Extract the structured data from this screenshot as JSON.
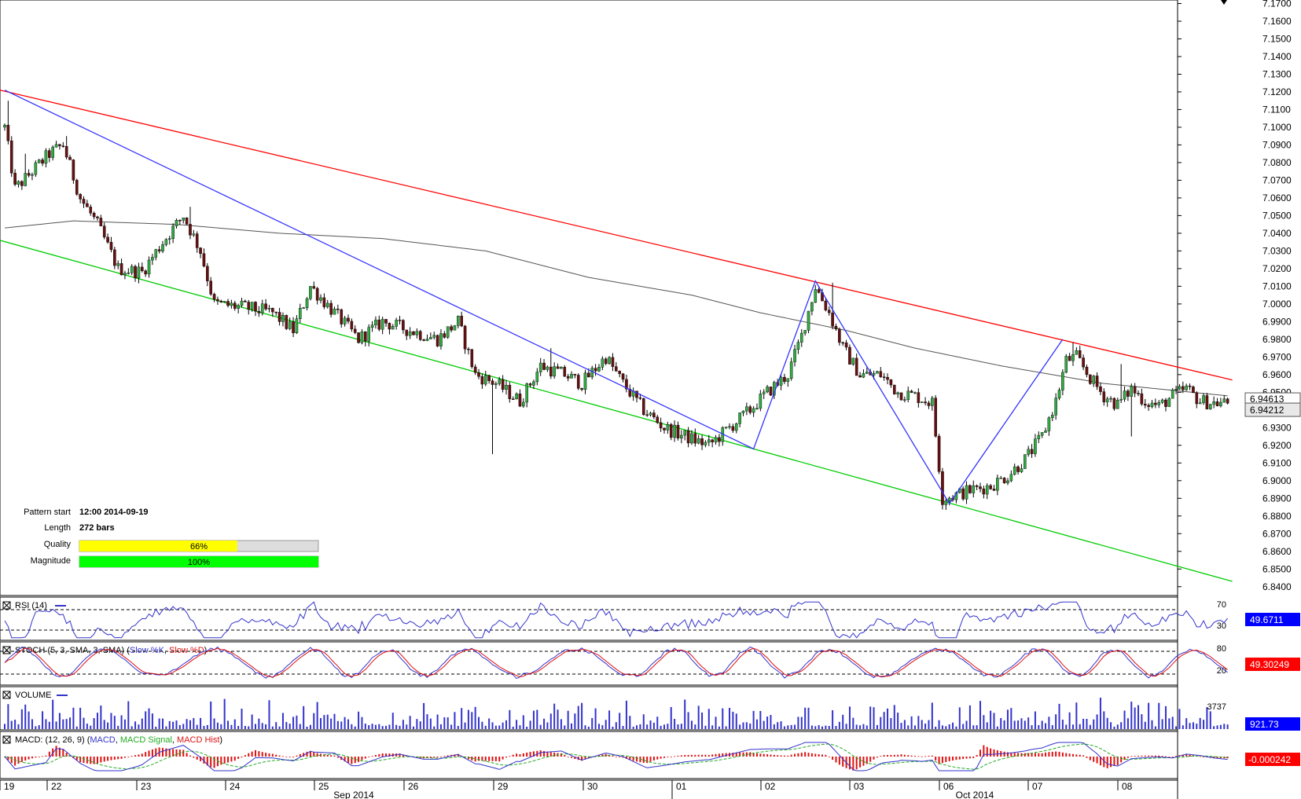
{
  "chart_data": {
    "type": "candlestick",
    "price_axis": {
      "ylim": [
        6.835,
        7.172
      ],
      "ticks": [
        "7.1700",
        "7.1600",
        "7.1500",
        "7.1400",
        "7.1300",
        "7.1200",
        "7.1100",
        "7.1000",
        "7.0900",
        "7.0800",
        "7.0700",
        "7.0600",
        "7.0500",
        "7.0400",
        "7.0300",
        "7.0200",
        "7.0100",
        "7.0000",
        "6.9900",
        "6.9800",
        "6.9700",
        "6.9600",
        "6.9500",
        "6.9300",
        "6.9200",
        "6.9100",
        "6.9000",
        "6.8900",
        "6.8800",
        "6.8700",
        "6.8600",
        "6.8500",
        "6.8400"
      ],
      "tick_values": [
        7.17,
        7.16,
        7.15,
        7.14,
        7.13,
        7.12,
        7.11,
        7.1,
        7.09,
        7.08,
        7.07,
        7.06,
        7.05,
        7.04,
        7.03,
        7.02,
        7.01,
        7.0,
        6.99,
        6.98,
        6.97,
        6.96,
        6.95,
        6.93,
        6.92,
        6.91,
        6.9,
        6.89,
        6.88,
        6.87,
        6.86,
        6.85,
        6.84
      ],
      "last_price": "6.94212",
      "ma_label": "6.94613",
      "last_value": 6.94212,
      "ma_value": 6.94613
    },
    "date_axis": {
      "day_labels": [
        "19",
        "22",
        "23",
        "24",
        "25",
        "26",
        "29",
        "30",
        "01",
        "02",
        "03",
        "06",
        "07",
        "08"
      ],
      "month_labels": [
        "Sep 2014",
        "Oct 2014"
      ]
    },
    "price_anchors": [
      [
        0,
        7.1
      ],
      [
        3,
        7.065
      ],
      [
        8,
        7.075
      ],
      [
        13,
        7.085
      ],
      [
        17,
        7.09
      ],
      [
        22,
        7.06
      ],
      [
        27,
        7.045
      ],
      [
        33,
        7.02
      ],
      [
        40,
        7.018
      ],
      [
        46,
        7.035
      ],
      [
        52,
        7.05
      ],
      [
        57,
        7.03
      ],
      [
        61,
        7.0
      ],
      [
        70,
        6.998
      ],
      [
        78,
        6.995
      ],
      [
        84,
        6.985
      ],
      [
        89,
        7.01
      ],
      [
        96,
        6.995
      ],
      [
        103,
        6.98
      ],
      [
        110,
        6.99
      ],
      [
        118,
        6.985
      ],
      [
        126,
        6.98
      ],
      [
        132,
        6.99
      ],
      [
        137,
        6.96
      ],
      [
        143,
        6.955
      ],
      [
        150,
        6.945
      ],
      [
        156,
        6.965
      ],
      [
        163,
        6.96
      ],
      [
        168,
        6.955
      ],
      [
        175,
        6.97
      ],
      [
        180,
        6.955
      ],
      [
        186,
        6.94
      ],
      [
        192,
        6.93
      ],
      [
        198,
        6.925
      ],
      [
        205,
        6.92
      ],
      [
        211,
        6.93
      ],
      [
        217,
        6.94
      ],
      [
        222,
        6.95
      ],
      [
        228,
        6.96
      ],
      [
        232,
        6.982
      ],
      [
        236,
        7.01
      ],
      [
        240,
        6.995
      ],
      [
        244,
        6.975
      ],
      [
        249,
        6.96
      ],
      [
        255,
        6.96
      ],
      [
        260,
        6.95
      ],
      [
        265,
        6.948
      ],
      [
        270,
        6.944
      ],
      [
        273,
        6.89
      ],
      [
        277,
        6.892
      ],
      [
        282,
        6.895
      ],
      [
        287,
        6.897
      ],
      [
        292,
        6.903
      ],
      [
        297,
        6.912
      ],
      [
        302,
        6.925
      ],
      [
        306,
        6.945
      ],
      [
        309,
        6.968
      ],
      [
        312,
        6.97
      ],
      [
        316,
        6.958
      ],
      [
        320,
        6.948
      ],
      [
        324,
        6.943
      ],
      [
        328,
        6.952
      ],
      [
        332,
        6.945
      ],
      [
        336,
        6.942
      ],
      [
        340,
        6.948
      ],
      [
        344,
        6.952
      ],
      [
        348,
        6.945
      ],
      [
        352,
        6.944
      ],
      [
        356,
        6.944
      ]
    ],
    "high_low_extremes": [
      [
        1,
        7.115
      ],
      [
        6,
        7.085
      ],
      [
        18,
        7.095
      ],
      [
        54,
        7.055
      ],
      [
        142,
        6.915
      ],
      [
        159,
        6.975
      ],
      [
        229,
        6.967
      ],
      [
        241,
        7.012
      ],
      [
        275,
        6.886
      ],
      [
        311,
        6.978
      ],
      [
        325,
        6.966
      ],
      [
        328,
        6.925
      ]
    ],
    "candle_count": 357,
    "moving_average": [
      [
        0,
        7.043
      ],
      [
        20,
        7.047
      ],
      [
        50,
        7.045
      ],
      [
        80,
        7.04
      ],
      [
        110,
        7.037
      ],
      [
        140,
        7.03
      ],
      [
        170,
        7.015
      ],
      [
        200,
        7.005
      ],
      [
        220,
        6.995
      ],
      [
        245,
        6.985
      ],
      [
        265,
        6.975
      ],
      [
        290,
        6.965
      ],
      [
        320,
        6.955
      ],
      [
        356,
        6.948
      ]
    ],
    "trend_lines": [
      {
        "color": "#ff0000",
        "points": [
          [
            0,
            7.121
          ],
          [
            356,
            6.957
          ]
        ]
      },
      {
        "color": "#00cc00",
        "points": [
          [
            0,
            7.036
          ],
          [
            356,
            6.843
          ]
        ]
      }
    ],
    "zigzag": {
      "color": "#3333ff",
      "points": [
        [
          0,
          7.121
        ],
        [
          218,
          6.918
        ],
        [
          236,
          7.013
        ],
        [
          275,
          6.887
        ],
        [
          308,
          6.98
        ]
      ]
    },
    "pattern_info": {
      "start_label": "Pattern start",
      "start_value": "12:00 2014-09-19",
      "length_label": "Length",
      "length_value": "272 bars",
      "quality_label": "Quality",
      "quality_text": "66%",
      "quality": 0.66,
      "magnitude_label": "Magnitude",
      "magnitude_text": "100%",
      "magnitude": 1.0
    },
    "indicators": {
      "rsi": {
        "title": "RSI (14)",
        "levels": [
          "70",
          "30"
        ],
        "level_values": [
          70,
          30
        ],
        "value_text": "49.6711"
      },
      "stoch": {
        "title_prefix": "STOCH (5, 3, SMA, 3, SMA) (",
        "k_name": "Slow %K",
        "sep": ", ",
        "d_name": "Slow %D",
        "title_suffix": ")",
        "levels": [
          "80",
          "20"
        ],
        "level_values": [
          80,
          20
        ],
        "value_text": "49.30249"
      },
      "volume": {
        "title": "VOLUME",
        "scale_label": "3737",
        "value_text": "921.73"
      },
      "macd": {
        "title_prefix": "MACD: (12, 26, 9) (",
        "macd_name": "MACD",
        "sep": ", ",
        "signal_name": "MACD Signal",
        "hist_name": "MACD Hist",
        "title_suffix": ")",
        "value_text": "-0.000242"
      }
    },
    "colors": {
      "bull": "#33aa44",
      "bear": "#661111",
      "wick": "#000000",
      "ma": "#555555",
      "rsi": "#3333cc",
      "stoch_k": "#3333cc",
      "stoch_d": "#dd1111",
      "volume": "#3333cc",
      "macd": "#3333cc",
      "signal": "#22aa22",
      "hist": "#dd1111",
      "quality_bar": "#ffff00",
      "magnitude_bar": "#00ff00",
      "bar_bg": "#dddddd",
      "last_price_box": "#e8e8e8",
      "indicator_box": "#0000ff"
    }
  }
}
